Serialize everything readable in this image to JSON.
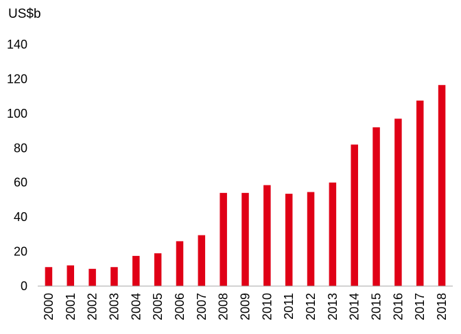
{
  "chart_data": {
    "type": "bar",
    "unit_label": "US$b",
    "categories": [
      "2000",
      "2001",
      "2002",
      "2003",
      "2004",
      "2005",
      "2006",
      "2007",
      "2008",
      "2009",
      "2010",
      "2011",
      "2012",
      "2013",
      "2014",
      "2015",
      "2016",
      "2017",
      "2018"
    ],
    "values": [
      11,
      12,
      10,
      11,
      17.5,
      19,
      26,
      29.5,
      54,
      54,
      58.5,
      53.5,
      54.5,
      60,
      82,
      92,
      97,
      107.5,
      116.5
    ],
    "yticks": [
      0,
      20,
      40,
      60,
      80,
      100,
      120,
      140
    ],
    "ylim": [
      0,
      140
    ],
    "bar_color": "#e00016",
    "grid": false,
    "legend": "none"
  }
}
